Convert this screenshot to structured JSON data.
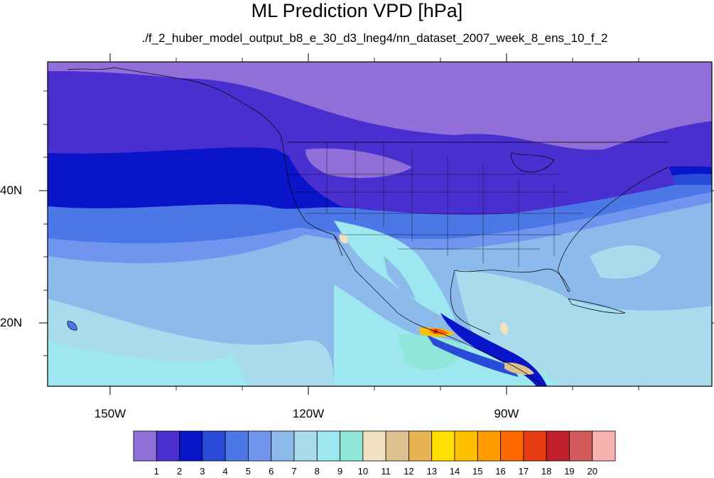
{
  "title": "ML Prediction VPD [hPa]",
  "subtitle": "./f_2_huber_model_output_b8_e_30_d3_lneg4/nn_dataset_2007_week_8_ens_10_f_2",
  "map": {
    "lat_labels": [
      "40N",
      "20N"
    ],
    "lon_labels": [
      "150W",
      "120W",
      "90W"
    ]
  },
  "colorbar": {
    "labels": [
      "1",
      "2",
      "3",
      "4",
      "5",
      "6",
      "7",
      "8",
      "9",
      "10",
      "11",
      "12",
      "13",
      "14",
      "15",
      "16",
      "17",
      "18",
      "19",
      "20"
    ],
    "colors": [
      "#9070d8",
      "#4a2fd0",
      "#0a14c8",
      "#2a4ad8",
      "#4b78e6",
      "#6f95ee",
      "#8cbaea",
      "#a8dcec",
      "#9de8f0",
      "#90e6d8",
      "#f0e2c0",
      "#dcc08e",
      "#e6b452",
      "#ffe000",
      "#ffc000",
      "#ff9a00",
      "#ff6a00",
      "#e83a12",
      "#c0202a",
      "#d25a5a",
      "#f7b2b2"
    ]
  }
}
